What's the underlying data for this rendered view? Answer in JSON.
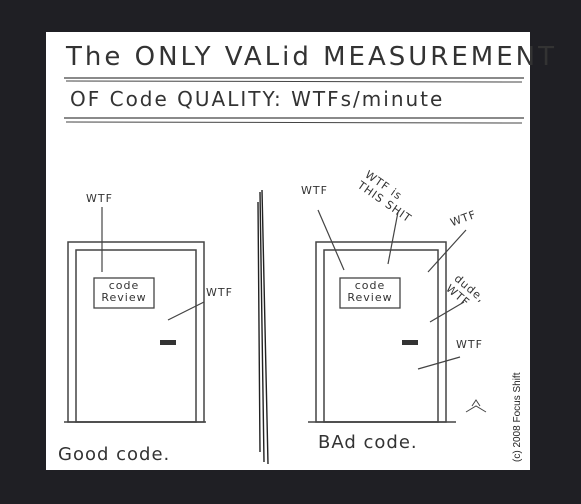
{
  "comic": {
    "title_line1": "The ONLY VALid MEASUREMENT",
    "title_line2": "OF Code QUALITY: WTFs/minute",
    "good_panel": {
      "sign_line1": "code",
      "sign_line2": "Review",
      "labels": [
        "WTF",
        "WTF"
      ],
      "caption": "Good code."
    },
    "bad_panel": {
      "sign_line1": "code",
      "sign_line2": "Review",
      "labels": [
        "WTF",
        "WTF is THIS SHIT",
        "WTF",
        "dude, WTF",
        "WTF"
      ],
      "caption": "BAd code."
    },
    "copyright": "(c) 2008 Focus Shift"
  }
}
